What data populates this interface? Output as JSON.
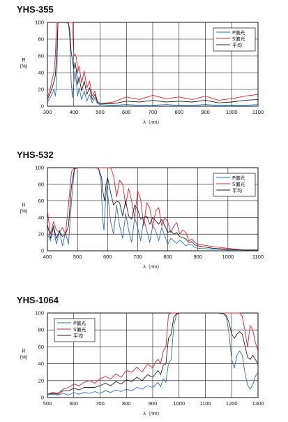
{
  "colors": {
    "p": "#2a6fb8",
    "s": "#e0202a",
    "avg": "#222222"
  },
  "chart_data": [
    {
      "type": "line",
      "title": "YHS-355",
      "xlabel": "λ（nm）",
      "ylabel": [
        "R",
        "(%)"
      ],
      "xlim": [
        300,
        1100
      ],
      "ylim": [
        0,
        100
      ],
      "xticks": [
        300,
        400,
        500,
        600,
        700,
        800,
        900,
        1000,
        1100
      ],
      "yticks": [
        0,
        20,
        40,
        60,
        80,
        100
      ],
      "grid": true,
      "legend_position": "top-right",
      "series": [
        {
          "name": "P偏光",
          "color": "#2a6fb8",
          "x": [
            300,
            310,
            318,
            325,
            330,
            335,
            340,
            345,
            350,
            360,
            370,
            380,
            385,
            390,
            395,
            400,
            405,
            410,
            415,
            420,
            430,
            440,
            450,
            460,
            470,
            480,
            490,
            500,
            550,
            600,
            650,
            700,
            750,
            800,
            850,
            900,
            950,
            1000,
            1050,
            1100
          ],
          "y": [
            5,
            10,
            15,
            20,
            12,
            25,
            99,
            100,
            100,
            100,
            100,
            99,
            80,
            30,
            10,
            28,
            42,
            28,
            12,
            22,
            8,
            18,
            6,
            14,
            4,
            10,
            3,
            2,
            1,
            2,
            1,
            1,
            2,
            1,
            1,
            2,
            1,
            1,
            1,
            2
          ]
        },
        {
          "name": "S偏光",
          "color": "#e0202a",
          "x": [
            300,
            310,
            318,
            325,
            330,
            335,
            340,
            345,
            350,
            360,
            370,
            380,
            390,
            395,
            400,
            405,
            410,
            415,
            420,
            430,
            440,
            450,
            460,
            470,
            480,
            490,
            500,
            550,
            600,
            650,
            700,
            750,
            800,
            850,
            900,
            950,
            1000,
            1050,
            1100
          ],
          "y": [
            10,
            20,
            32,
            40,
            60,
            100,
            100,
            100,
            100,
            100,
            100,
            100,
            100,
            100,
            60,
            62,
            58,
            40,
            48,
            28,
            42,
            22,
            30,
            12,
            18,
            6,
            3,
            5,
            11,
            8,
            13,
            9,
            11,
            8,
            12,
            7,
            9,
            12,
            14
          ]
        },
        {
          "name": "平均",
          "color": "#222222",
          "x": [
            300,
            310,
            318,
            325,
            330,
            335,
            340,
            345,
            350,
            360,
            370,
            380,
            385,
            390,
            395,
            400,
            405,
            410,
            415,
            420,
            430,
            440,
            450,
            460,
            470,
            480,
            490,
            500,
            550,
            600,
            650,
            700,
            750,
            800,
            850,
            900,
            950,
            1000,
            1050,
            1100
          ],
          "y": [
            8,
            15,
            22,
            30,
            36,
            62,
            99,
            100,
            100,
            100,
            100,
            99,
            90,
            65,
            55,
            44,
            52,
            43,
            26,
            35,
            18,
            30,
            14,
            22,
            8,
            14,
            5,
            3,
            3,
            6,
            5,
            7,
            5,
            6,
            5,
            7,
            4,
            5,
            7,
            8
          ]
        }
      ]
    },
    {
      "type": "line",
      "title": "YHS-532",
      "xlabel": "λ（nm）",
      "ylabel": [
        "R",
        "(%)"
      ],
      "xlim": [
        400,
        1100
      ],
      "ylim": [
        0,
        100
      ],
      "xticks": [
        400,
        500,
        600,
        700,
        800,
        900,
        1000,
        1100
      ],
      "yticks": [
        0,
        20,
        40,
        60,
        80,
        100
      ],
      "grid": true,
      "legend_position": "top-right",
      "series": [
        {
          "name": "P偏光",
          "color": "#2a6fb8",
          "x": [
            400,
            410,
            420,
            430,
            440,
            450,
            460,
            470,
            480,
            490,
            500,
            510,
            560,
            570,
            578,
            583,
            588,
            593,
            598,
            600,
            610,
            620,
            630,
            640,
            650,
            660,
            670,
            680,
            690,
            700,
            710,
            720,
            730,
            740,
            750,
            760,
            770,
            780,
            790,
            800,
            810,
            820,
            830,
            840,
            850,
            860,
            870,
            880,
            890,
            900,
            950,
            1000,
            1050,
            1100
          ],
          "y": [
            20,
            12,
            28,
            8,
            25,
            6,
            22,
            8,
            60,
            98,
            100,
            100,
            100,
            99,
            85,
            40,
            25,
            60,
            78,
            70,
            35,
            20,
            55,
            30,
            15,
            45,
            25,
            10,
            40,
            28,
            12,
            38,
            25,
            10,
            30,
            24,
            12,
            28,
            18,
            8,
            15,
            12,
            9,
            13,
            10,
            6,
            8,
            7,
            4,
            3,
            2,
            1,
            1,
            1
          ]
        },
        {
          "name": "S偏光",
          "color": "#e0202a",
          "x": [
            400,
            410,
            420,
            430,
            440,
            450,
            460,
            470,
            480,
            490,
            500,
            510,
            560,
            600,
            610,
            620,
            630,
            640,
            650,
            660,
            670,
            680,
            690,
            700,
            710,
            720,
            730,
            740,
            750,
            760,
            770,
            780,
            790,
            800,
            810,
            820,
            830,
            840,
            850,
            860,
            870,
            880,
            890,
            900,
            950,
            1000,
            1050,
            1100
          ],
          "y": [
            48,
            20,
            35,
            25,
            22,
            28,
            20,
            55,
            95,
            100,
            100,
            100,
            100,
            100,
            100,
            90,
            65,
            85,
            80,
            55,
            75,
            60,
            40,
            72,
            62,
            30,
            58,
            52,
            28,
            48,
            52,
            30,
            40,
            35,
            22,
            30,
            34,
            20,
            25,
            22,
            12,
            14,
            10,
            8,
            5,
            3,
            1,
            1
          ]
        },
        {
          "name": "平均",
          "color": "#222222",
          "x": [
            400,
            410,
            420,
            430,
            440,
            450,
            460,
            470,
            480,
            490,
            500,
            510,
            560,
            570,
            580,
            585,
            590,
            595,
            600,
            610,
            620,
            630,
            640,
            650,
            660,
            670,
            680,
            690,
            700,
            710,
            720,
            730,
            740,
            750,
            760,
            770,
            780,
            790,
            800,
            810,
            820,
            830,
            840,
            850,
            860,
            870,
            880,
            890,
            900,
            950,
            1000,
            1050,
            1100
          ],
          "y": [
            32,
            15,
            30,
            15,
            23,
            17,
            20,
            30,
            78,
            99,
            100,
            100,
            100,
            99,
            88,
            70,
            60,
            80,
            88,
            70,
            55,
            60,
            58,
            42,
            60,
            42,
            38,
            55,
            50,
            38,
            40,
            42,
            32,
            40,
            36,
            32,
            38,
            30,
            22,
            24,
            20,
            22,
            17,
            16,
            14,
            10,
            11,
            7,
            6,
            3,
            2,
            1,
            1
          ]
        }
      ]
    },
    {
      "type": "line",
      "title": "YHS-1064",
      "xlabel": "λ（nm）",
      "ylabel": [
        "R",
        "(%)"
      ],
      "xlim": [
        500,
        1300
      ],
      "ylim": [
        0,
        100
      ],
      "xticks": [
        500,
        600,
        700,
        800,
        900,
        1000,
        1100,
        1200,
        1300
      ],
      "yticks": [
        0,
        20,
        40,
        60,
        80,
        100
      ],
      "grid": true,
      "legend_position": "top-left",
      "series": [
        {
          "name": "P偏光",
          "color": "#2a6fb8",
          "x": [
            500,
            520,
            540,
            560,
            580,
            600,
            620,
            640,
            660,
            680,
            700,
            720,
            740,
            760,
            780,
            800,
            820,
            840,
            860,
            880,
            900,
            910,
            920,
            930,
            940,
            950,
            960,
            970,
            980,
            990,
            1000,
            1050,
            1100,
            1150,
            1170,
            1180,
            1190,
            1200,
            1210,
            1220,
            1230,
            1240,
            1250,
            1260,
            1270,
            1280,
            1290,
            1300
          ],
          "y": [
            3,
            4,
            3,
            5,
            3,
            6,
            4,
            6,
            5,
            7,
            5,
            8,
            6,
            9,
            7,
            10,
            8,
            12,
            10,
            14,
            12,
            15,
            18,
            13,
            22,
            18,
            40,
            45,
            85,
            98,
            100,
            100,
            100,
            100,
            99,
            95,
            75,
            45,
            35,
            50,
            55,
            50,
            30,
            15,
            10,
            15,
            25,
            30
          ]
        },
        {
          "name": "S偏光",
          "color": "#e0202a",
          "x": [
            500,
            520,
            540,
            560,
            580,
            600,
            620,
            640,
            660,
            680,
            700,
            720,
            740,
            760,
            780,
            800,
            820,
            840,
            860,
            880,
            900,
            910,
            920,
            930,
            940,
            950,
            960,
            970,
            980,
            990,
            1000,
            1050,
            1100,
            1150,
            1200,
            1210,
            1220,
            1230,
            1240,
            1250,
            1260,
            1270,
            1280,
            1290,
            1300
          ],
          "y": [
            4,
            6,
            5,
            10,
            12,
            16,
            14,
            18,
            20,
            17,
            22,
            25,
            22,
            28,
            24,
            32,
            30,
            36,
            30,
            40,
            35,
            42,
            45,
            40,
            55,
            60,
            98,
            100,
            100,
            100,
            100,
            100,
            100,
            100,
            100,
            100,
            100,
            100,
            96,
            80,
            60,
            85,
            80,
            65,
            55
          ]
        },
        {
          "name": "平均",
          "color": "#222222",
          "x": [
            500,
            520,
            540,
            560,
            580,
            600,
            620,
            640,
            660,
            680,
            700,
            720,
            740,
            760,
            780,
            800,
            820,
            840,
            860,
            880,
            900,
            910,
            920,
            930,
            940,
            950,
            960,
            970,
            980,
            990,
            1000,
            1050,
            1100,
            1150,
            1170,
            1180,
            1190,
            1200,
            1210,
            1220,
            1230,
            1240,
            1250,
            1260,
            1270,
            1280,
            1290,
            1300
          ],
          "y": [
            4,
            5,
            4,
            8,
            8,
            11,
            9,
            12,
            12,
            12,
            14,
            17,
            14,
            19,
            16,
            21,
            19,
            24,
            20,
            27,
            24,
            28,
            32,
            27,
            38,
            40,
            70,
            75,
            95,
            99,
            100,
            100,
            100,
            100,
            99,
            97,
            88,
            75,
            70,
            75,
            78,
            75,
            62,
            48,
            45,
            50,
            45,
            40
          ]
        }
      ]
    }
  ]
}
